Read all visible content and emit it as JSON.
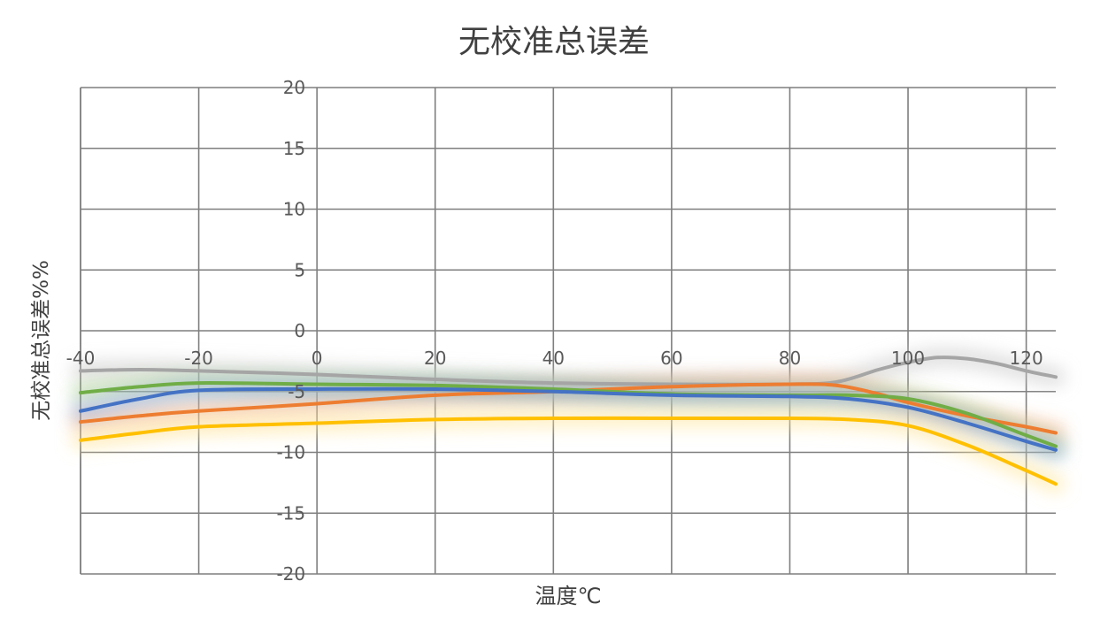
{
  "chart_data": {
    "type": "line",
    "title": "无校准总误差",
    "xlabel": "温度℃",
    "ylabel": "无校准总误差%%",
    "xlim": [
      -40,
      125
    ],
    "ylim": [
      -20,
      20
    ],
    "x_ticks": [
      -40,
      -20,
      0,
      20,
      40,
      60,
      80,
      100,
      120
    ],
    "y_ticks": [
      20,
      15,
      10,
      5,
      0,
      -5,
      -10,
      -15,
      -20
    ],
    "grid": true,
    "legend": "none",
    "series": [
      {
        "color": "#a5a5a5",
        "glow": "#c8c8c8",
        "points": [
          [
            -40,
            -3.3
          ],
          [
            -30,
            -3.2
          ],
          [
            -20,
            -3.3
          ],
          [
            0,
            -3.6
          ],
          [
            20,
            -4.0
          ],
          [
            40,
            -4.3
          ],
          [
            60,
            -4.4
          ],
          [
            80,
            -4.4
          ],
          [
            88,
            -4.2
          ],
          [
            95,
            -3.2
          ],
          [
            100,
            -2.6
          ],
          [
            105,
            -2.2
          ],
          [
            110,
            -2.3
          ],
          [
            115,
            -2.7
          ],
          [
            120,
            -3.3
          ],
          [
            125,
            -3.8
          ]
        ]
      },
      {
        "color": "#ed7d31",
        "glow": "#f4b183",
        "points": [
          [
            -40,
            -7.5
          ],
          [
            -30,
            -7.0
          ],
          [
            -20,
            -6.6
          ],
          [
            0,
            -6.0
          ],
          [
            20,
            -5.3
          ],
          [
            40,
            -5.0
          ],
          [
            60,
            -4.6
          ],
          [
            80,
            -4.4
          ],
          [
            88,
            -4.5
          ],
          [
            95,
            -5.2
          ],
          [
            100,
            -5.9
          ],
          [
            110,
            -7.0
          ],
          [
            120,
            -7.9
          ],
          [
            125,
            -8.4
          ]
        ]
      },
      {
        "color": "#70ad47",
        "glow": "#a9d18e",
        "points": [
          [
            -40,
            -5.1
          ],
          [
            -30,
            -4.6
          ],
          [
            -20,
            -4.3
          ],
          [
            0,
            -4.4
          ],
          [
            20,
            -4.5
          ],
          [
            40,
            -4.8
          ],
          [
            60,
            -5.2
          ],
          [
            80,
            -5.3
          ],
          [
            90,
            -5.3
          ],
          [
            100,
            -5.6
          ],
          [
            110,
            -6.8
          ],
          [
            120,
            -8.6
          ],
          [
            125,
            -9.5
          ]
        ]
      },
      {
        "color": "#4472c4",
        "glow": "#8faadc",
        "points": [
          [
            -40,
            -6.6
          ],
          [
            -30,
            -5.6
          ],
          [
            -20,
            -4.9
          ],
          [
            0,
            -4.8
          ],
          [
            20,
            -4.8
          ],
          [
            40,
            -5.0
          ],
          [
            60,
            -5.3
          ],
          [
            80,
            -5.4
          ],
          [
            90,
            -5.6
          ],
          [
            100,
            -6.3
          ],
          [
            110,
            -7.6
          ],
          [
            120,
            -9.1
          ],
          [
            125,
            -9.8
          ]
        ]
      },
      {
        "color": "#ffc000",
        "glow": "#ffe699",
        "points": [
          [
            -40,
            -9.0
          ],
          [
            -30,
            -8.4
          ],
          [
            -20,
            -7.9
          ],
          [
            0,
            -7.6
          ],
          [
            20,
            -7.3
          ],
          [
            40,
            -7.2
          ],
          [
            60,
            -7.2
          ],
          [
            80,
            -7.2
          ],
          [
            90,
            -7.3
          ],
          [
            100,
            -7.8
          ],
          [
            110,
            -9.4
          ],
          [
            120,
            -11.5
          ],
          [
            125,
            -12.6
          ]
        ]
      }
    ]
  }
}
